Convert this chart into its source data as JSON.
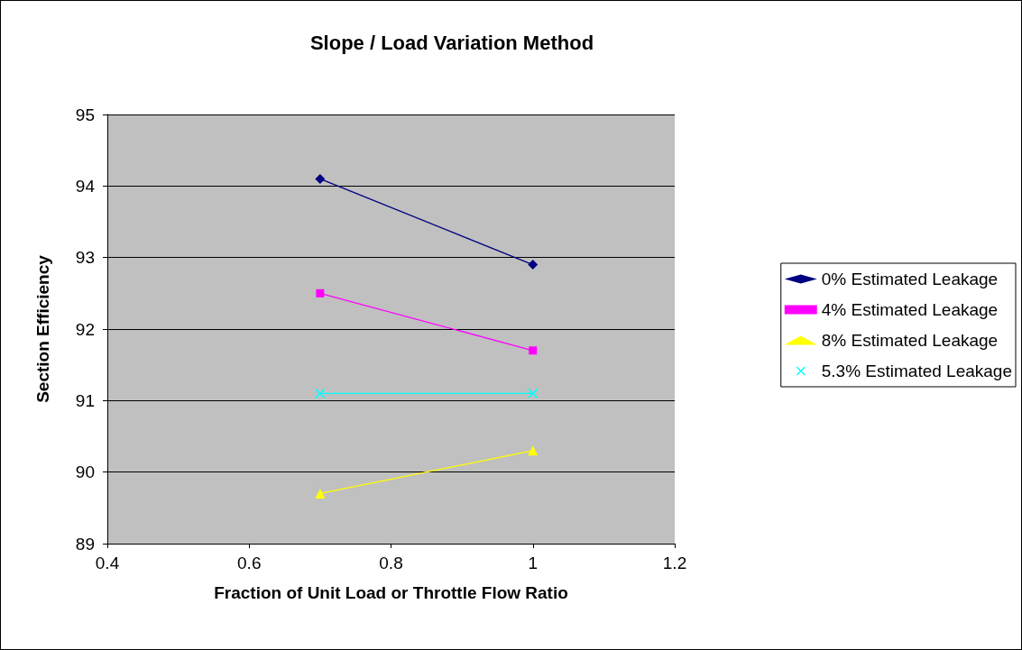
{
  "chart_data": {
    "type": "line",
    "title": "Slope / Load Variation Method",
    "xlabel": "Fraction of Unit Load or Throttle Flow Ratio",
    "ylabel": "Section Efficiency",
    "x": [
      0.7,
      1
    ],
    "xlim": [
      0.4,
      1.2
    ],
    "xticks": [
      0.4,
      0.6,
      0.8,
      1,
      1.2
    ],
    "ylim": [
      89,
      95
    ],
    "yticks": [
      89,
      90,
      91,
      92,
      93,
      94,
      95
    ],
    "grid": "y",
    "legend": "right",
    "line_style": "solid",
    "series": [
      {
        "name": "0% Estimated Leakage",
        "color": "#000080",
        "marker": "diamond",
        "values": [
          94.1,
          92.9
        ]
      },
      {
        "name": "4% Estimated Leakage",
        "color": "#ff00ff",
        "marker": "square",
        "values": [
          92.5,
          91.7
        ]
      },
      {
        "name": "8% Estimated Leakage",
        "color": "#ffff00",
        "marker": "triangle",
        "values": [
          89.7,
          90.3
        ]
      },
      {
        "name": "5.3% Estimated Leakage",
        "color": "#00ffff",
        "marker": "cross",
        "values": [
          91.1,
          91.1
        ]
      }
    ]
  }
}
